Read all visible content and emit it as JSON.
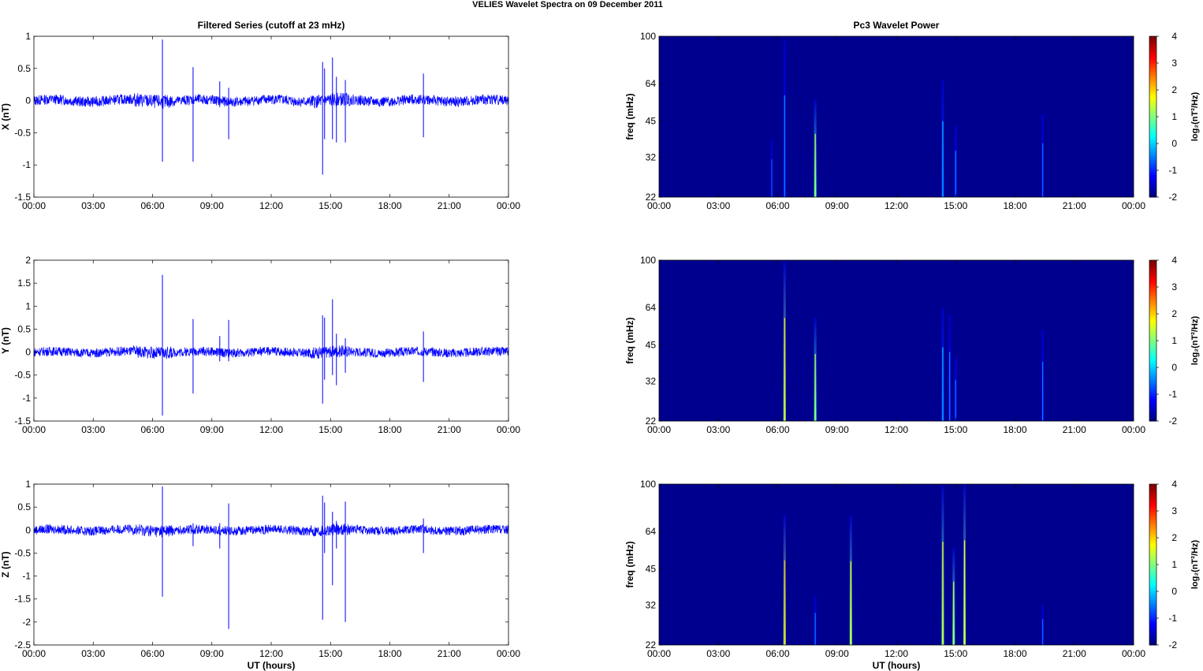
{
  "figure_title": "VELIES Wavelet Spectra on 09 December  2011",
  "left_column_title": "Filtered Series (cutoff at 23 mHz)",
  "right_column_title": "Pc3 Wavelet Power",
  "time_xlabel": "UT (hours)",
  "colors": {
    "trace": "#0000ff",
    "spectrum_background": "#00008f",
    "axis": "#000000"
  },
  "chart_data": [
    {
      "type": "line",
      "title": "Filtered Series (cutoff at 23 mHz)",
      "ylabel": "X (nT)",
      "xlabel": "",
      "xlim": [
        0,
        24
      ],
      "ylim": [
        -1.5,
        1
      ],
      "xticks": [
        "00:00",
        "03:00",
        "06:00",
        "09:00",
        "12:00",
        "15:00",
        "18:00",
        "21:00",
        "00:00"
      ],
      "yticks": [
        "1",
        "0.5",
        "0",
        "-0.5",
        "-1",
        "-1.5"
      ],
      "ytick_values": [
        1,
        0.5,
        0,
        -0.5,
        -1,
        -1.5
      ],
      "noise_amplitude": 0.08,
      "spikes": [
        {
          "t": 6.5,
          "hi": 0.95,
          "lo": -0.95
        },
        {
          "t": 8.05,
          "hi": 0.52,
          "lo": -0.95
        },
        {
          "t": 9.4,
          "hi": 0.3,
          "lo": -0.1
        },
        {
          "t": 9.85,
          "hi": 0.2,
          "lo": -0.6
        },
        {
          "t": 14.6,
          "hi": 0.6,
          "lo": -1.15
        },
        {
          "t": 14.7,
          "hi": 0.5,
          "lo": -0.6
        },
        {
          "t": 15.1,
          "hi": 0.67,
          "lo": -0.6
        },
        {
          "t": 15.3,
          "hi": 0.37,
          "lo": -0.65
        },
        {
          "t": 15.75,
          "hi": 0.32,
          "lo": -0.65
        },
        {
          "t": 19.7,
          "hi": 0.42,
          "lo": -0.57
        }
      ]
    },
    {
      "type": "line",
      "title": "",
      "ylabel": "Y (nT)",
      "xlabel": "",
      "xlim": [
        0,
        24
      ],
      "ylim": [
        -1.5,
        2
      ],
      "xticks": [
        "00:00",
        "03:00",
        "06:00",
        "09:00",
        "12:00",
        "15:00",
        "18:00",
        "21:00",
        "00:00"
      ],
      "yticks": [
        "2",
        "1.5",
        "1",
        "0.5",
        "0",
        "-0.5",
        "-1",
        "-1.5"
      ],
      "ytick_values": [
        2,
        1.5,
        1,
        0.5,
        0,
        -0.5,
        -1,
        -1.5
      ],
      "noise_amplitude": 0.1,
      "spikes": [
        {
          "t": 6.5,
          "hi": 1.68,
          "lo": -1.38
        },
        {
          "t": 8.05,
          "hi": 0.72,
          "lo": -0.9
        },
        {
          "t": 9.4,
          "hi": 0.35,
          "lo": -0.2
        },
        {
          "t": 9.85,
          "hi": 0.7,
          "lo": -0.2
        },
        {
          "t": 14.6,
          "hi": 0.8,
          "lo": -1.12
        },
        {
          "t": 14.7,
          "hi": 0.75,
          "lo": -0.6
        },
        {
          "t": 15.1,
          "hi": 1.15,
          "lo": -0.5
        },
        {
          "t": 15.3,
          "hi": 0.4,
          "lo": -0.72
        },
        {
          "t": 15.75,
          "hi": 0.3,
          "lo": -0.45
        },
        {
          "t": 19.7,
          "hi": 0.45,
          "lo": -0.65
        }
      ]
    },
    {
      "type": "line",
      "title": "",
      "ylabel": "Z (nT)",
      "xlabel": "UT (hours)",
      "xlim": [
        0,
        24
      ],
      "ylim": [
        -2.5,
        1
      ],
      "xticks": [
        "00:00",
        "03:00",
        "06:00",
        "09:00",
        "12:00",
        "15:00",
        "18:00",
        "21:00",
        "00:00"
      ],
      "yticks": [
        "1",
        "0.5",
        "0",
        "-0.5",
        "-1",
        "-1.5",
        "-2",
        "-2.5"
      ],
      "ytick_values": [
        1,
        0.5,
        0,
        -0.5,
        -1,
        -1.5,
        -2,
        -2.5
      ],
      "noise_amplitude": 0.1,
      "spikes": [
        {
          "t": 6.5,
          "hi": 0.95,
          "lo": -1.45
        },
        {
          "t": 8.05,
          "hi": 0.15,
          "lo": -0.35
        },
        {
          "t": 9.4,
          "hi": 0.15,
          "lo": -0.4
        },
        {
          "t": 9.85,
          "hi": 0.58,
          "lo": -2.15
        },
        {
          "t": 14.6,
          "hi": 0.75,
          "lo": -1.95
        },
        {
          "t": 14.7,
          "hi": 0.6,
          "lo": -0.5
        },
        {
          "t": 15.1,
          "hi": 0.4,
          "lo": -1.2
        },
        {
          "t": 15.3,
          "hi": 0.2,
          "lo": -0.4
        },
        {
          "t": 15.75,
          "hi": 0.62,
          "lo": -2.0
        },
        {
          "t": 19.7,
          "hi": 0.25,
          "lo": -0.5
        }
      ]
    },
    {
      "type": "heatmap",
      "title": "Pc3 Wavelet Power",
      "ylabel": "freq (mHz)",
      "xlabel": "",
      "xlim": [
        0,
        24
      ],
      "ylim": [
        22,
        100
      ],
      "yscale": "log",
      "xticks": [
        "00:00",
        "03:00",
        "06:00",
        "09:00",
        "12:00",
        "15:00",
        "18:00",
        "21:00",
        "00:00"
      ],
      "yticks": [
        "100",
        "64",
        "45",
        "32",
        "22"
      ],
      "ytick_values": [
        100,
        64,
        45,
        32,
        22
      ],
      "colorbar": {
        "label": "log₂(nT²/Hz)",
        "range": [
          -2,
          4
        ],
        "ticks": [
          "4",
          "3",
          "2",
          "1",
          "0",
          "-1",
          "-2"
        ]
      },
      "background_level": -2,
      "streaks": [
        {
          "t": 5.7,
          "fmax": 38,
          "level": -1.6
        },
        {
          "t": 6.35,
          "fmax": 96,
          "level": -1.3
        },
        {
          "t": 7.9,
          "fmax": 55,
          "level": 0.5
        },
        {
          "t": 14.35,
          "fmax": 66,
          "level": -1.0
        },
        {
          "t": 15.0,
          "fmax": 43,
          "level": -1.3
        },
        {
          "t": 19.4,
          "fmax": 48,
          "level": -1.5
        }
      ]
    },
    {
      "type": "heatmap",
      "title": "",
      "ylabel": "freq (mHz)",
      "xlabel": "",
      "xlim": [
        0,
        24
      ],
      "ylim": [
        22,
        100
      ],
      "yscale": "log",
      "xticks": [
        "00:00",
        "03:00",
        "06:00",
        "09:00",
        "12:00",
        "15:00",
        "18:00",
        "21:00",
        "00:00"
      ],
      "yticks": [
        "100",
        "64",
        "45",
        "32",
        "22"
      ],
      "ytick_values": [
        100,
        64,
        45,
        32,
        22
      ],
      "colorbar": {
        "label": "log₂(nT²/Hz)",
        "range": [
          -2,
          4
        ],
        "ticks": [
          "4",
          "3",
          "2",
          "1",
          "0",
          "-1",
          "-2"
        ]
      },
      "background_level": -2,
      "streaks": [
        {
          "t": 6.35,
          "fmax": 98,
          "level": 1.0
        },
        {
          "t": 7.9,
          "fmax": 58,
          "level": 0.5
        },
        {
          "t": 14.35,
          "fmax": 64,
          "level": -1.0
        },
        {
          "t": 14.7,
          "fmax": 60,
          "level": -1.4
        },
        {
          "t": 15.0,
          "fmax": 40,
          "level": -1.4
        },
        {
          "t": 19.4,
          "fmax": 52,
          "level": -1.4
        }
      ]
    },
    {
      "type": "heatmap",
      "title": "",
      "ylabel": "freq (mHz)",
      "xlabel": "UT (hours)",
      "xlim": [
        0,
        24
      ],
      "ylim": [
        22,
        100
      ],
      "yscale": "log",
      "xticks": [
        "00:00",
        "03:00",
        "06:00",
        "09:00",
        "12:00",
        "15:00",
        "18:00",
        "21:00",
        "00:00"
      ],
      "yticks": [
        "100",
        "64",
        "45",
        "32",
        "22"
      ],
      "ytick_values": [
        100,
        64,
        45,
        32,
        22
      ],
      "colorbar": {
        "label": "log₂(nT²/Hz)",
        "range": [
          -2,
          4
        ],
        "ticks": [
          "4",
          "3",
          "2",
          "1",
          "0",
          "-1",
          "-2"
        ]
      },
      "background_level": -2,
      "streaks": [
        {
          "t": 6.35,
          "fmax": 75,
          "level": 1.2
        },
        {
          "t": 7.9,
          "fmax": 35,
          "level": -1.4
        },
        {
          "t": 9.7,
          "fmax": 74,
          "level": 0.8
        },
        {
          "t": 14.35,
          "fmax": 98,
          "level": 0.8
        },
        {
          "t": 14.9,
          "fmax": 55,
          "level": 0.6
        },
        {
          "t": 15.45,
          "fmax": 100,
          "level": 0.9
        },
        {
          "t": 19.4,
          "fmax": 32,
          "level": -1.5
        }
      ]
    }
  ]
}
